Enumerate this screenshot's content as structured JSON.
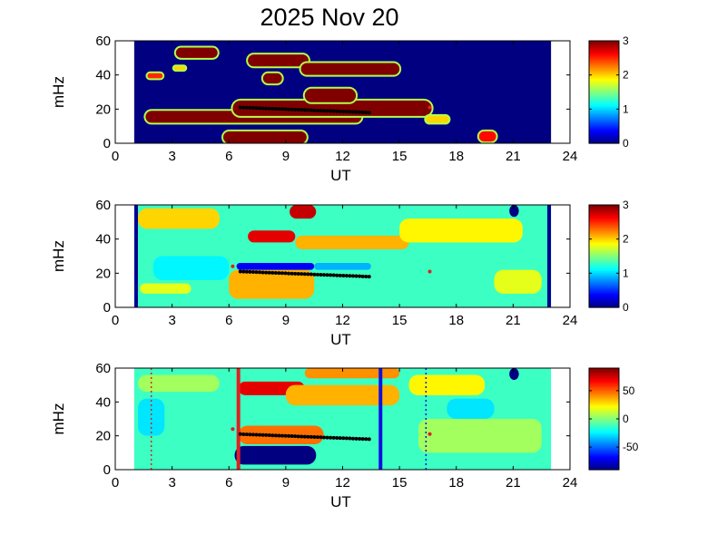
{
  "figure": {
    "title": "2025 Nov 20"
  },
  "colors": {
    "jet_low": "#00008f",
    "jet_high": "#800000",
    "trace": "#000000",
    "red_marker": "#dd2020",
    "red_line": "#e02020",
    "blue_line": "#1010e0"
  },
  "chart_data": [
    {
      "type": "heatmap",
      "name": "panel-1",
      "xlabel": "UT",
      "ylabel": "mHz",
      "xlim": [
        0,
        24
      ],
      "ylim": [
        0,
        60
      ],
      "xticks": [
        "0",
        "3",
        "6",
        "9",
        "12",
        "15",
        "18",
        "21",
        "24"
      ],
      "yticks": [
        "0",
        "20",
        "40",
        "60"
      ],
      "data_range_x": [
        1.0,
        23.0
      ],
      "background_value": 0,
      "colorbar": {
        "range": [
          0,
          3
        ],
        "ticks": [
          "0",
          "1",
          "2",
          "3"
        ]
      },
      "blobs": [
        {
          "x0": 1.6,
          "x1": 13.0,
          "y0": 12,
          "y1": 19,
          "v": 3
        },
        {
          "x0": 6.2,
          "x1": 16.7,
          "y0": 16,
          "y1": 25,
          "v": 3
        },
        {
          "x0": 10.0,
          "x1": 12.7,
          "y0": 24,
          "y1": 32,
          "v": 3
        },
        {
          "x0": 7.0,
          "x1": 10.2,
          "y0": 45,
          "y1": 52,
          "v": 3
        },
        {
          "x0": 7.8,
          "x1": 8.8,
          "y0": 35,
          "y1": 41,
          "v": 3
        },
        {
          "x0": 9.8,
          "x1": 15.0,
          "y0": 40,
          "y1": 47,
          "v": 3
        },
        {
          "x0": 3.2,
          "x1": 5.4,
          "y0": 50,
          "y1": 56,
          "v": 3
        },
        {
          "x0": 1.7,
          "x1": 2.5,
          "y0": 38,
          "y1": 41,
          "v": 2.5
        },
        {
          "x0": 3.1,
          "x1": 3.7,
          "y0": 43,
          "y1": 45,
          "v": 2
        },
        {
          "x0": 5.7,
          "x1": 10.1,
          "y0": 0,
          "y1": 7,
          "v": 3
        },
        {
          "x0": 19.2,
          "x1": 20.1,
          "y0": 1,
          "y1": 7,
          "v": 2.6
        },
        {
          "x0": 16.4,
          "x1": 17.6,
          "y0": 12,
          "y1": 16,
          "v": 2
        }
      ],
      "trace": {
        "x0": 6.6,
        "x1": 13.4,
        "y0": 21,
        "y1": 18
      },
      "markers": [
        {
          "x": 16.6,
          "y": 21
        }
      ],
      "vlines": []
    },
    {
      "type": "heatmap",
      "name": "panel-2",
      "xlabel": "UT",
      "ylabel": "mHz",
      "xlim": [
        0,
        24
      ],
      "ylim": [
        0,
        60
      ],
      "xticks": [
        "0",
        "3",
        "6",
        "9",
        "12",
        "15",
        "18",
        "21",
        "24"
      ],
      "yticks": [
        "0",
        "20",
        "40",
        "60"
      ],
      "data_range_x": [
        1.0,
        23.0
      ],
      "background_value": 1.3,
      "colorbar": {
        "range": [
          0,
          3
        ],
        "ticks": [
          "0",
          "1",
          "2",
          "3"
        ]
      },
      "blobs": [
        {
          "x0": 1.2,
          "x1": 5.5,
          "y0": 46,
          "y1": 58,
          "v": 2.0
        },
        {
          "x0": 7.0,
          "x1": 9.5,
          "y0": 38,
          "y1": 45,
          "v": 2.7
        },
        {
          "x0": 9.5,
          "x1": 15.5,
          "y0": 34,
          "y1": 42,
          "v": 2.1
        },
        {
          "x0": 9.2,
          "x1": 10.6,
          "y0": 52,
          "y1": 60,
          "v": 2.8
        },
        {
          "x0": 6.0,
          "x1": 10.5,
          "y0": 5,
          "y1": 22,
          "v": 2.1
        },
        {
          "x0": 6.4,
          "x1": 10.5,
          "y0": 22,
          "y1": 26,
          "v": 0.35
        },
        {
          "x0": 10.5,
          "x1": 13.5,
          "y0": 22,
          "y1": 26,
          "v": 0.9
        },
        {
          "x0": 15.0,
          "x1": 21.5,
          "y0": 38,
          "y1": 52,
          "v": 1.9
        },
        {
          "x0": 20.0,
          "x1": 22.5,
          "y0": 8,
          "y1": 22,
          "v": 1.8
        },
        {
          "x0": 1.3,
          "x1": 4.0,
          "y0": 8,
          "y1": 14,
          "v": 1.8
        },
        {
          "x0": 2.0,
          "x1": 6.0,
          "y0": 16,
          "y1": 30,
          "v": 1.1
        },
        {
          "x0": 20.8,
          "x1": 21.3,
          "y0": 53,
          "y1": 60,
          "v": 0
        }
      ],
      "trace": {
        "x0": 6.6,
        "x1": 13.4,
        "y0": 21,
        "y1": 18
      },
      "markers": [
        {
          "x": 6.2,
          "y": 24
        },
        {
          "x": 16.6,
          "y": 21
        }
      ],
      "vlines": [
        {
          "x": 1.1,
          "color": "#00008f",
          "width": 4,
          "dash": false
        },
        {
          "x": 22.9,
          "color": "#00008f",
          "width": 4,
          "dash": false
        }
      ]
    },
    {
      "type": "heatmap",
      "name": "panel-3",
      "xlabel": "UT",
      "ylabel": "mHz",
      "xlim": [
        0,
        24
      ],
      "ylim": [
        0,
        60
      ],
      "xticks": [
        "0",
        "3",
        "6",
        "9",
        "12",
        "15",
        "18",
        "21",
        "24"
      ],
      "yticks": [
        "0",
        "20",
        "40",
        "60"
      ],
      "data_range_x": [
        1.0,
        23.0
      ],
      "background_value": 1.3,
      "colorbar": {
        "range": [
          -90,
          90
        ],
        "ticks": [
          "50",
          "0",
          "-50"
        ],
        "tick_values": [
          50,
          0,
          -50
        ]
      },
      "blobs": [
        {
          "x0": 6.3,
          "x1": 10.6,
          "y0": 3,
          "y1": 14,
          "v": 0
        },
        {
          "x0": 6.5,
          "x1": 11.0,
          "y0": 15,
          "y1": 26,
          "v": 2.3
        },
        {
          "x0": 6.5,
          "x1": 10.0,
          "y0": 44,
          "y1": 52,
          "v": 2.7
        },
        {
          "x0": 9.0,
          "x1": 15.0,
          "y0": 38,
          "y1": 50,
          "v": 2.1
        },
        {
          "x0": 10.0,
          "x1": 15.0,
          "y0": 54,
          "y1": 60,
          "v": 2.2
        },
        {
          "x0": 1.2,
          "x1": 5.5,
          "y0": 46,
          "y1": 56,
          "v": 1.6
        },
        {
          "x0": 15.5,
          "x1": 19.5,
          "y0": 44,
          "y1": 56,
          "v": 1.9
        },
        {
          "x0": 16.0,
          "x1": 22.5,
          "y0": 10,
          "y1": 30,
          "v": 1.6
        },
        {
          "x0": 17.5,
          "x1": 20.0,
          "y0": 30,
          "y1": 42,
          "v": 1.05
        },
        {
          "x0": 1.2,
          "x1": 2.6,
          "y0": 20,
          "y1": 42,
          "v": 1.05
        },
        {
          "x0": 20.8,
          "x1": 21.3,
          "y0": 53,
          "y1": 60,
          "v": 0
        }
      ],
      "trace": {
        "x0": 6.6,
        "x1": 13.4,
        "y0": 21,
        "y1": 18
      },
      "markers": [
        {
          "x": 6.2,
          "y": 24
        },
        {
          "x": 16.6,
          "y": 21
        }
      ],
      "vlines": [
        {
          "x": 1.9,
          "color": "#e02020",
          "width": 1.5,
          "dash": true
        },
        {
          "x": 6.5,
          "color": "#e02020",
          "width": 4,
          "dash": false
        },
        {
          "x": 14.0,
          "color": "#1010e0",
          "width": 4,
          "dash": false
        },
        {
          "x": 16.4,
          "color": "#1010e0",
          "width": 1.5,
          "dash": true
        }
      ]
    }
  ]
}
